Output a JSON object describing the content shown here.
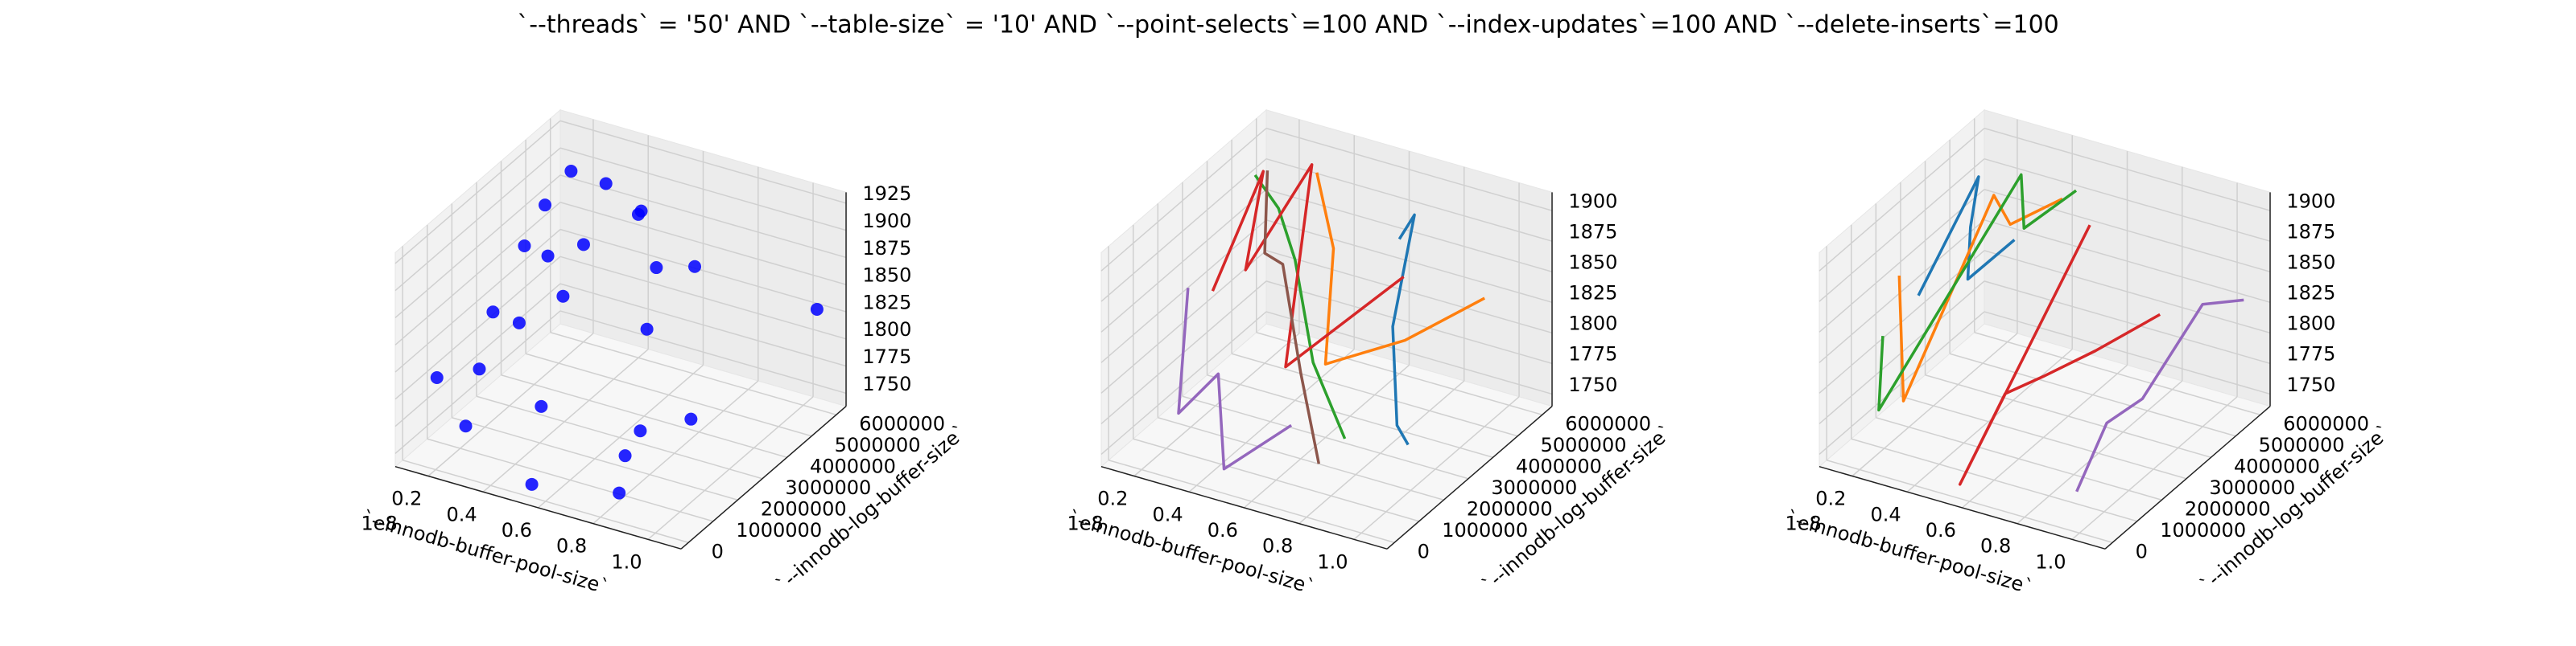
{
  "title": "`--threads` = '50' AND `--table-size` = '10'  AND `--point-selects`=100 AND `--index-updates`=100 AND `--delete-inserts`=100",
  "chart_data": [
    {
      "type": "scatter3d",
      "xlabel": "`--innodb-buffer-pool-size`",
      "ylabel": "`--innodb-log-buffer-size`",
      "x_offset": "1e8",
      "xlim": [
        8000000,
        112000000
      ],
      "ylim": [
        -300000,
        6400000
      ],
      "zlim": [
        1738,
        1935
      ],
      "xticks": [
        {
          "value": 20000000,
          "label": "0.2"
        },
        {
          "value": 40000000,
          "label": "0.4"
        },
        {
          "value": 60000000,
          "label": "0.6"
        },
        {
          "value": 80000000,
          "label": "0.8"
        },
        {
          "value": 100000000,
          "label": "1.0"
        }
      ],
      "yticks": [
        0,
        1000000,
        2000000,
        3000000,
        4000000,
        5000000,
        6000000
      ],
      "zticks": [
        1750,
        1775,
        1800,
        1825,
        1850,
        1875,
        1900,
        1925
      ],
      "series": [
        {
          "color": "#0000ff",
          "x": [
            12000000,
            15000000,
            20000000,
            14000000,
            25000000,
            18000000,
            30000000,
            22000000,
            35000000,
            40000000,
            16000000,
            28000000,
            50000000,
            45000000,
            60000000,
            70000000,
            80000000,
            95000000,
            105000000,
            90000000,
            85000000,
            55000000,
            38000000,
            65000000
          ],
          "y": [
            4500000,
            5000000,
            5500000,
            3000000,
            4000000,
            2000000,
            5800000,
            1000000,
            3500000,
            6000000,
            500000,
            2500000,
            5000000,
            1500000,
            4500000,
            3000000,
            1000000,
            2000000,
            6000000,
            500000,
            200000,
            0,
            4000000,
            5500000
          ],
          "z": [
            1850,
            1880,
            1905,
            1820,
            1860,
            1790,
            1895,
            1760,
            1840,
            1870,
            1810,
            1830,
            1900,
            1785,
            1865,
            1845,
            1775,
            1800,
            1830,
            1815,
            1760,
            1750,
            1880,
            1850
          ]
        }
      ]
    },
    {
      "type": "line3d",
      "xlabel": "`--innodb-buffer-pool-size`",
      "ylabel": "`--innodb-log-buffer-size`",
      "x_offset": "1e8",
      "xlim": [
        8000000,
        112000000
      ],
      "ylim": [
        -300000,
        6400000
      ],
      "zlim": [
        1740,
        1915
      ],
      "xticks": [
        {
          "value": 20000000,
          "label": "0.2"
        },
        {
          "value": 40000000,
          "label": "0.4"
        },
        {
          "value": 60000000,
          "label": "0.6"
        },
        {
          "value": 80000000,
          "label": "0.8"
        },
        {
          "value": 100000000,
          "label": "1.0"
        }
      ],
      "yticks": [
        0,
        1000000,
        2000000,
        3000000,
        4000000,
        5000000,
        6000000
      ],
      "zticks": [
        1750,
        1775,
        1800,
        1825,
        1850,
        1875,
        1900
      ],
      "series": [
        {
          "color": "#1f77b4",
          "x": [
            60000000,
            70000000,
            80000000,
            95000000,
            108000000
          ],
          "y": [
            6000000,
            5500000,
            3500000,
            2000000,
            1000000
          ],
          "z": [
            1850,
            1885,
            1835,
            1790,
            1800
          ]
        },
        {
          "color": "#ff7f0e",
          "x": [
            30000000,
            45000000,
            60000000,
            80000000,
            100000000
          ],
          "y": [
            6000000,
            5000000,
            3000000,
            4000000,
            5000000
          ],
          "z": [
            1885,
            1850,
            1800,
            1815,
            1845
          ]
        },
        {
          "color": "#2ca02c",
          "x": [
            12000000,
            25000000,
            40000000,
            60000000,
            85000000
          ],
          "y": [
            5500000,
            5000000,
            4000000,
            2500000,
            1000000
          ],
          "z": [
            1880,
            1870,
            1855,
            1810,
            1790
          ]
        },
        {
          "color": "#d62728",
          "x": [
            10000000,
            15000000,
            22000000,
            30000000,
            50000000,
            75000000
          ],
          "y": [
            4000000,
            5500000,
            4000000,
            5800000,
            2500000,
            4500000
          ],
          "z": [
            1810,
            1885,
            1835,
            1895,
            1800,
            1855
          ]
        },
        {
          "color": "#9467bd",
          "x": [
            10000000,
            20000000,
            30000000,
            50000000,
            70000000
          ],
          "y": [
            3000000,
            1500000,
            2000000,
            0,
            500000
          ],
          "z": [
            1830,
            1760,
            1790,
            1760,
            1800
          ]
        },
        {
          "color": "#8c564b",
          "x": [
            12000000,
            20000000,
            40000000,
            60000000,
            80000000
          ],
          "y": [
            6000000,
            5000000,
            3500000,
            2000000,
            500000
          ],
          "z": [
            1875,
            1830,
            1860,
            1810,
            1775
          ]
        }
      ]
    },
    {
      "type": "line3d",
      "xlabel": "`--innodb-buffer-pool-size`",
      "ylabel": "`--innodb-log-buffer-size`",
      "x_offset": "1e8",
      "xlim": [
        8000000,
        112000000
      ],
      "ylim": [
        -300000,
        6400000
      ],
      "zlim": [
        1740,
        1915
      ],
      "xticks": [
        {
          "value": 20000000,
          "label": "0.2"
        },
        {
          "value": 40000000,
          "label": "0.4"
        },
        {
          "value": 60000000,
          "label": "0.6"
        },
        {
          "value": 80000000,
          "label": "0.8"
        },
        {
          "value": 100000000,
          "label": "1.0"
        }
      ],
      "yticks": [
        0,
        1000000,
        2000000,
        3000000,
        4000000,
        5000000,
        6000000
      ],
      "zticks": [
        1750,
        1775,
        1800,
        1825,
        1850,
        1875,
        1900
      ],
      "series": [
        {
          "color": "#1f77b4",
          "x": [
            10000000,
            14000000,
            20000000,
            28000000,
            36000000
          ],
          "y": [
            3500000,
            5500000,
            4500000,
            3500000,
            4500000
          ],
          "z": [
            1815,
            1880,
            1860,
            1840,
            1860
          ]
        },
        {
          "color": "#ff7f0e",
          "x": [
            12000000,
            18000000,
            24000000,
            30000000,
            40000000
          ],
          "y": [
            2500000,
            2000000,
            5000000,
            5000000,
            6000000
          ],
          "z": [
            1850,
            1760,
            1880,
            1860,
            1870
          ]
        },
        {
          "color": "#2ca02c",
          "x": [
            15000000,
            18000000,
            25000000,
            35000000,
            45000000
          ],
          "y": [
            1500000,
            1000000,
            6000000,
            5000000,
            6000000
          ],
          "z": [
            1820,
            1770,
            1880,
            1860,
            1880
          ]
        },
        {
          "color": "#d62728",
          "x": [
            50000000,
            52000000,
            55000000,
            60000000,
            70000000,
            80000000
          ],
          "y": [
            6000000,
            500000,
            2000000,
            3000000,
            4000000,
            5500000
          ],
          "z": [
            1855,
            1740,
            1790,
            1790,
            1800,
            1810
          ]
        },
        {
          "color": "#9467bd",
          "x": [
            90000000,
            92000000,
            96000000,
            100000000,
            106000000
          ],
          "y": [
            1000000,
            2000000,
            3000000,
            5000000,
            6000000
          ],
          "z": [
            1750,
            1790,
            1795,
            1840,
            1830
          ]
        }
      ]
    }
  ]
}
